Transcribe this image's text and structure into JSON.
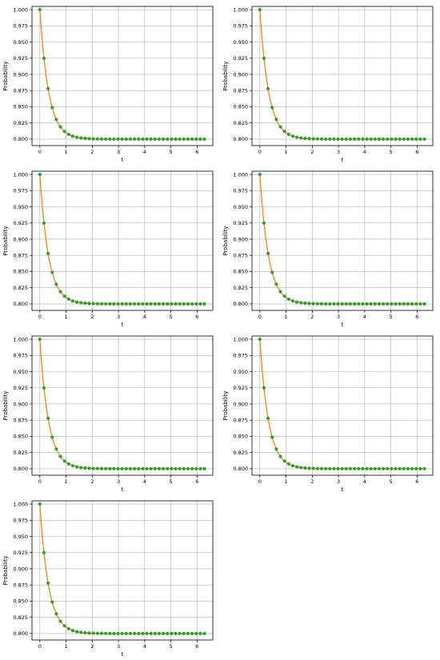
{
  "figure": {
    "rows": 4,
    "cols": 2,
    "line_color": "#ff7f0e",
    "marker_color": "#2ca02c",
    "grid_color": "#b0b0b0"
  },
  "chart_data": [
    {
      "type": "line",
      "title": "",
      "xlabel": "t",
      "ylabel": "Probability",
      "xlim": [
        -0.3,
        6.6
      ],
      "ylim": [
        0.79,
        1.005
      ],
      "xticks": [
        0,
        1,
        2,
        3,
        4,
        5,
        6
      ],
      "xtick_labels": [
        "0",
        "1",
        "2",
        "3",
        "4",
        "5",
        "6"
      ],
      "yticks": [
        0.8,
        0.825,
        0.85,
        0.875,
        0.9,
        0.925,
        0.95,
        0.975,
        1.0
      ],
      "ytick_labels": [
        "0.800",
        "0.825",
        "0.850",
        "0.875",
        "0.900",
        "0.925",
        "0.950",
        "0.975",
        "1.000"
      ],
      "grid": true,
      "series": [
        {
          "curve": {
            "asymptote": 0.8,
            "initial": 1.0,
            "rate": 3.0,
            "t_start": 0,
            "t_end": 6.28
          },
          "markers": {
            "t_start": 0,
            "t_step": 0.157,
            "count": 41
          }
        }
      ]
    },
    {
      "type": "line",
      "title": "",
      "xlabel": "t",
      "ylabel": "Probability",
      "xlim": [
        -0.3,
        6.6
      ],
      "ylim": [
        0.79,
        1.005
      ],
      "xticks": [
        0,
        1,
        2,
        3,
        4,
        5,
        6
      ],
      "xtick_labels": [
        "0",
        "1",
        "2",
        "3",
        "4",
        "5",
        "6"
      ],
      "yticks": [
        0.8,
        0.825,
        0.85,
        0.875,
        0.9,
        0.925,
        0.95,
        0.975,
        1.0
      ],
      "ytick_labels": [
        "0.800",
        "0.825",
        "0.850",
        "0.875",
        "0.900",
        "0.925",
        "0.950",
        "0.975",
        "1.000"
      ],
      "grid": true,
      "series": [
        {
          "curve": {
            "asymptote": 0.8,
            "initial": 1.0,
            "rate": 3.0,
            "t_start": 0,
            "t_end": 6.28
          },
          "markers": {
            "t_start": 0,
            "t_step": 0.157,
            "count": 41
          }
        }
      ]
    },
    {
      "type": "line",
      "title": "",
      "xlabel": "t",
      "ylabel": "Probability",
      "xlim": [
        -0.3,
        6.6
      ],
      "ylim": [
        0.79,
        1.005
      ],
      "xticks": [
        0,
        1,
        2,
        3,
        4,
        5,
        6
      ],
      "xtick_labels": [
        "0",
        "1",
        "2",
        "3",
        "4",
        "5",
        "6"
      ],
      "yticks": [
        0.8,
        0.825,
        0.85,
        0.875,
        0.9,
        0.925,
        0.95,
        0.975,
        1.0
      ],
      "ytick_labels": [
        "0.800",
        "0.825",
        "0.850",
        "0.875",
        "0.900",
        "0.925",
        "0.950",
        "0.975",
        "1.000"
      ],
      "grid": true,
      "series": [
        {
          "curve": {
            "asymptote": 0.8,
            "initial": 1.0,
            "rate": 3.0,
            "t_start": 0,
            "t_end": 6.28
          },
          "markers": {
            "t_start": 0,
            "t_step": 0.157,
            "count": 41
          }
        }
      ]
    },
    {
      "type": "line",
      "title": "",
      "xlabel": "t",
      "ylabel": "Probability",
      "xlim": [
        -0.3,
        6.6
      ],
      "ylim": [
        0.79,
        1.005
      ],
      "xticks": [
        0,
        1,
        2,
        3,
        4,
        5,
        6
      ],
      "xtick_labels": [
        "0",
        "1",
        "2",
        "3",
        "4",
        "5",
        "6"
      ],
      "yticks": [
        0.8,
        0.825,
        0.85,
        0.875,
        0.9,
        0.925,
        0.95,
        0.975,
        1.0
      ],
      "ytick_labels": [
        "0.800",
        "0.825",
        "0.850",
        "0.875",
        "0.900",
        "0.925",
        "0.950",
        "0.975",
        "1.000"
      ],
      "grid": true,
      "series": [
        {
          "curve": {
            "asymptote": 0.8,
            "initial": 1.0,
            "rate": 3.0,
            "t_start": 0,
            "t_end": 6.28
          },
          "markers": {
            "t_start": 0,
            "t_step": 0.157,
            "count": 41
          }
        }
      ]
    },
    {
      "type": "line",
      "title": "",
      "xlabel": "t",
      "ylabel": "Probability",
      "xlim": [
        -0.3,
        6.6
      ],
      "ylim": [
        0.79,
        1.005
      ],
      "xticks": [
        0,
        1,
        2,
        3,
        4,
        5,
        6
      ],
      "xtick_labels": [
        "0",
        "1",
        "2",
        "3",
        "4",
        "5",
        "6"
      ],
      "yticks": [
        0.8,
        0.825,
        0.85,
        0.875,
        0.9,
        0.925,
        0.95,
        0.975,
        1.0
      ],
      "ytick_labels": [
        "0.800",
        "0.825",
        "0.850",
        "0.875",
        "0.900",
        "0.925",
        "0.950",
        "0.975",
        "1.000"
      ],
      "grid": true,
      "series": [
        {
          "curve": {
            "asymptote": 0.8,
            "initial": 1.0,
            "rate": 3.0,
            "t_start": 0,
            "t_end": 6.28
          },
          "markers": {
            "t_start": 0,
            "t_step": 0.157,
            "count": 41
          }
        }
      ]
    },
    {
      "type": "line",
      "title": "",
      "xlabel": "t",
      "ylabel": "Probability",
      "xlim": [
        -0.3,
        6.6
      ],
      "ylim": [
        0.79,
        1.005
      ],
      "xticks": [
        0,
        1,
        2,
        3,
        4,
        5,
        6
      ],
      "xtick_labels": [
        "0",
        "1",
        "2",
        "3",
        "4",
        "5",
        "6"
      ],
      "yticks": [
        0.8,
        0.825,
        0.85,
        0.875,
        0.9,
        0.925,
        0.95,
        0.975,
        1.0
      ],
      "ytick_labels": [
        "0.800",
        "0.825",
        "0.850",
        "0.875",
        "0.900",
        "0.925",
        "0.950",
        "0.975",
        "1.000"
      ],
      "grid": true,
      "series": [
        {
          "curve": {
            "asymptote": 0.8,
            "initial": 1.0,
            "rate": 3.0,
            "t_start": 0,
            "t_end": 6.28
          },
          "markers": {
            "t_start": 0,
            "t_step": 0.157,
            "count": 41
          }
        }
      ]
    },
    {
      "type": "line",
      "title": "",
      "xlabel": "t",
      "ylabel": "Probability",
      "xlim": [
        -0.3,
        6.6
      ],
      "ylim": [
        0.79,
        1.005
      ],
      "xticks": [
        0,
        1,
        2,
        3,
        4,
        5,
        6
      ],
      "xtick_labels": [
        "0",
        "1",
        "2",
        "3",
        "4",
        "5",
        "6"
      ],
      "yticks": [
        0.8,
        0.825,
        0.85,
        0.875,
        0.9,
        0.925,
        0.95,
        0.975,
        1.0
      ],
      "ytick_labels": [
        "0.800",
        "0.825",
        "0.850",
        "0.875",
        "0.900",
        "0.925",
        "0.950",
        "0.975",
        "1.000"
      ],
      "grid": true,
      "series": [
        {
          "curve": {
            "asymptote": 0.8,
            "initial": 1.0,
            "rate": 3.0,
            "t_start": 0,
            "t_end": 6.28
          },
          "markers": {
            "t_start": 0,
            "t_step": 0.157,
            "count": 41
          }
        }
      ]
    }
  ]
}
